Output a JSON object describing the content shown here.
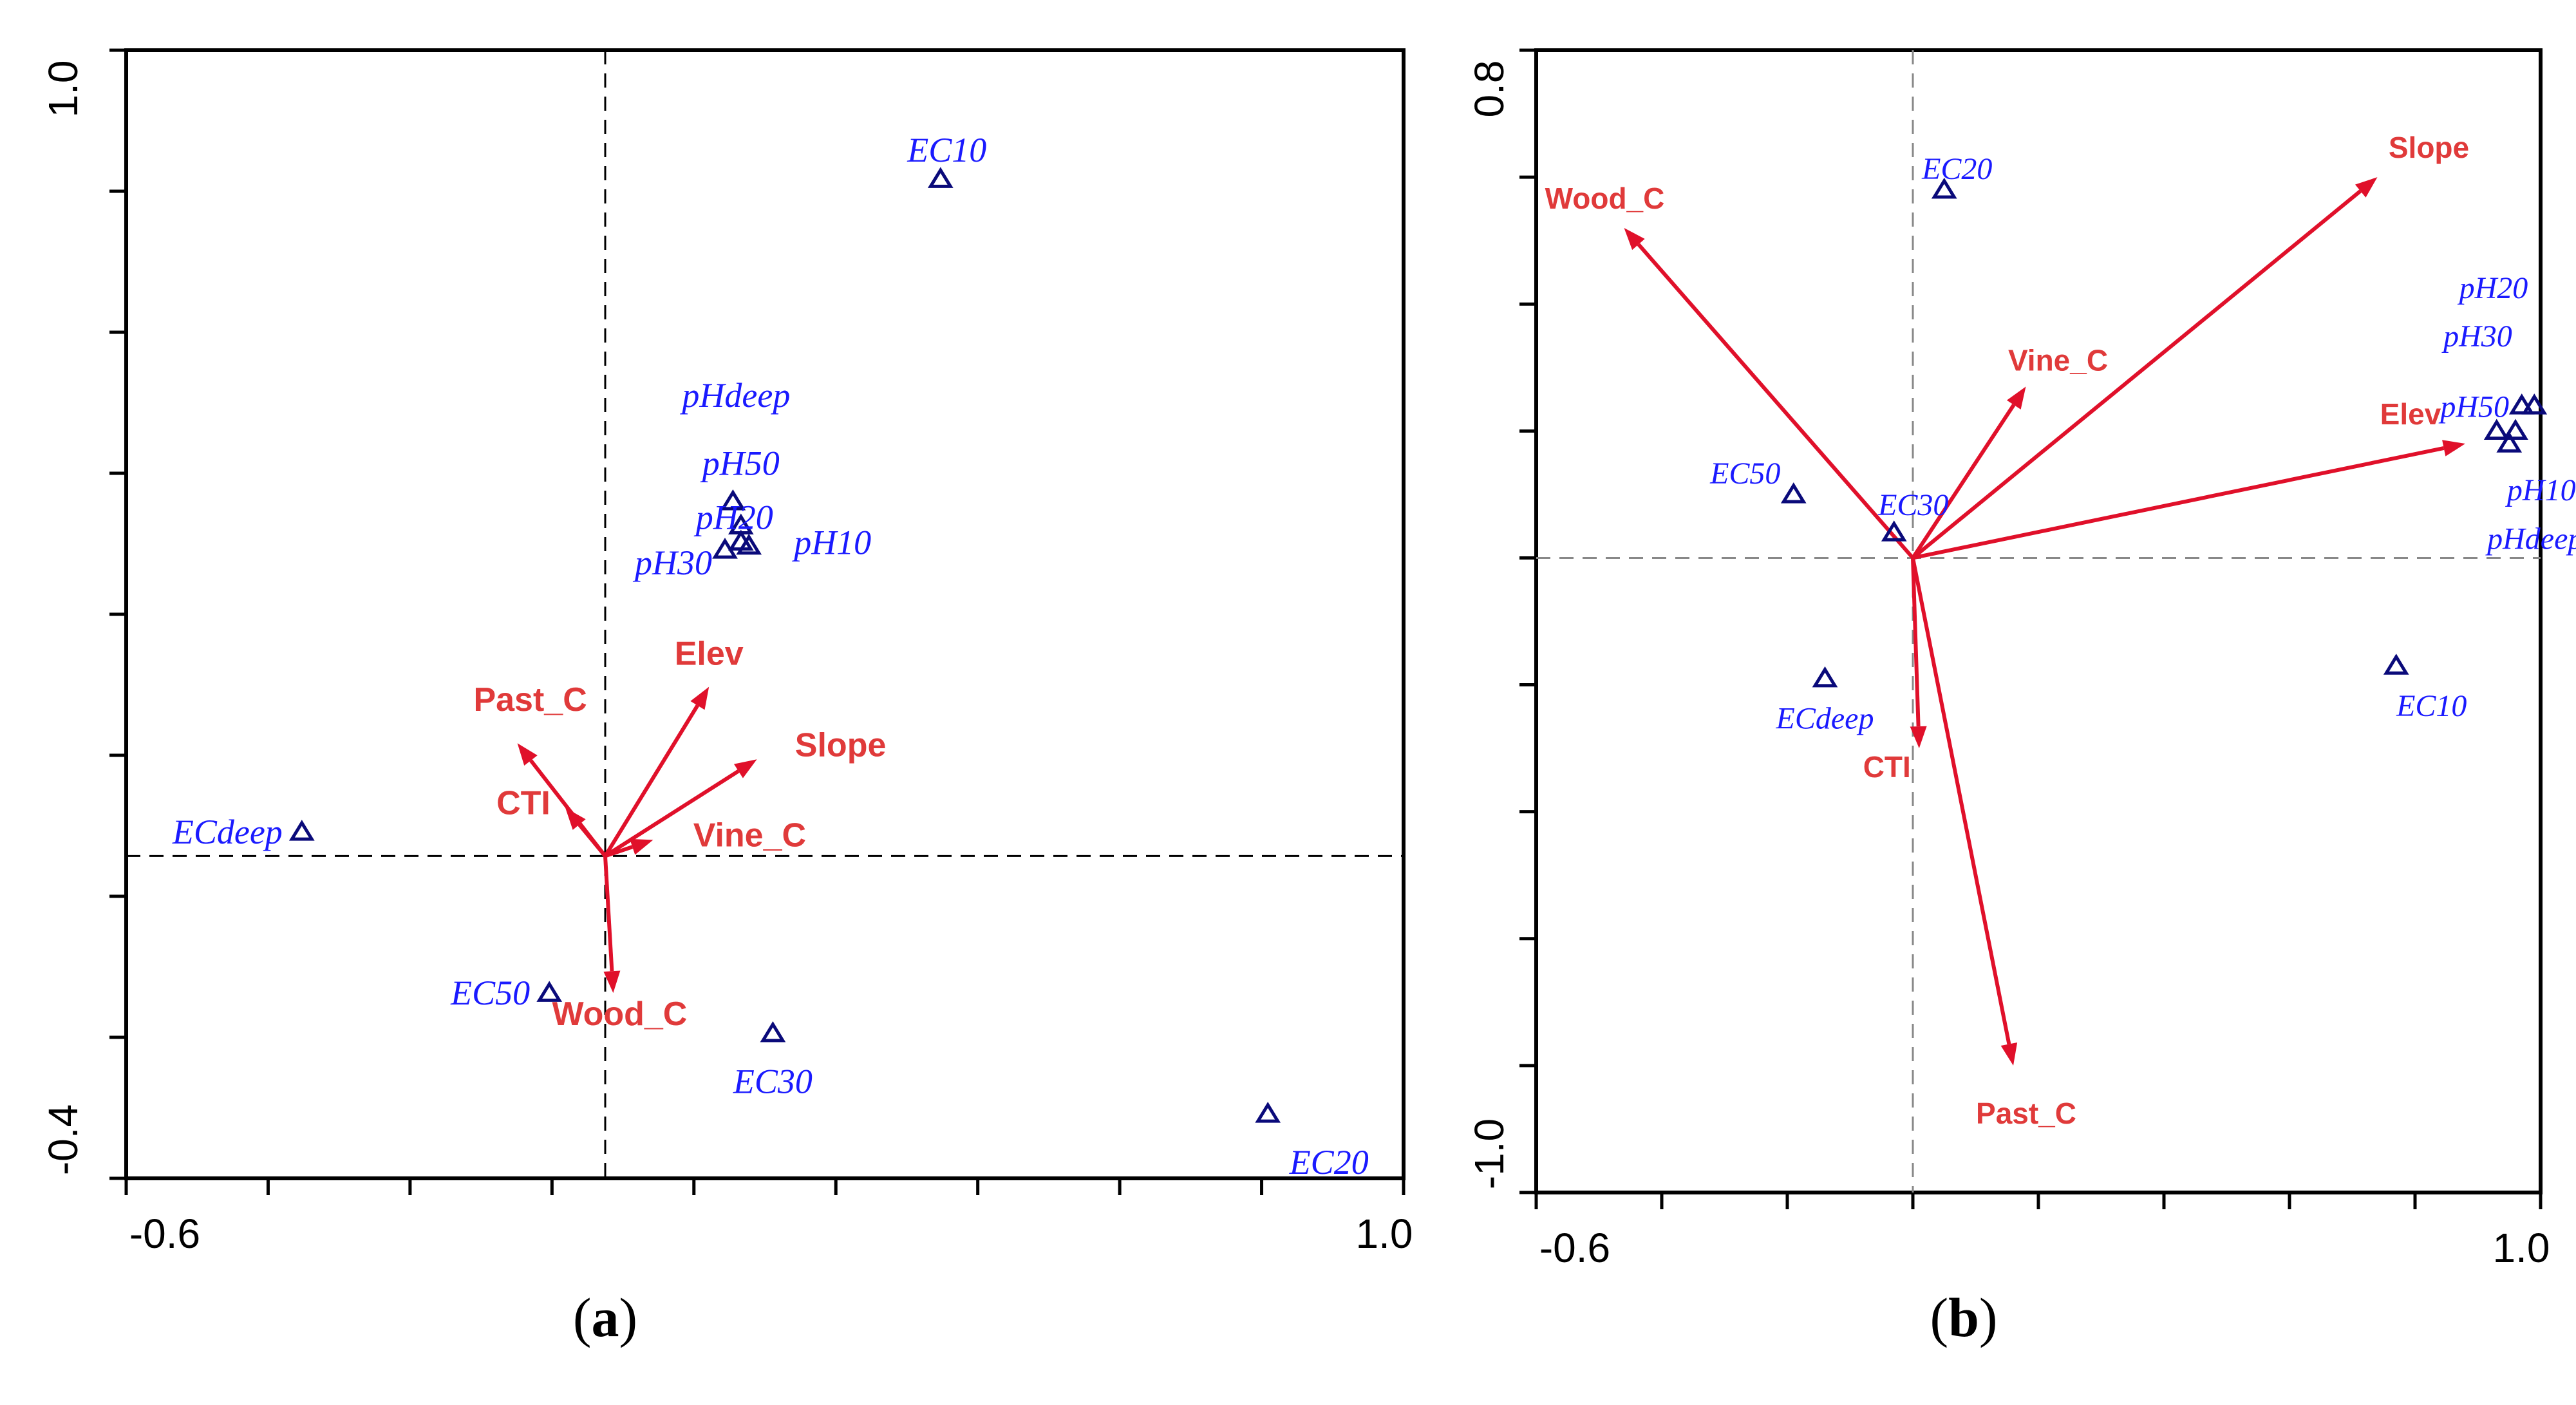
{
  "chart_data": [
    {
      "type": "scatter",
      "panel_label": "(a)",
      "xlim": [
        -0.6,
        1.0
      ],
      "ylim": [
        -0.4,
        1.0
      ],
      "x_tick_labels": [
        "-0.6",
        "1.0"
      ],
      "y_tick_labels": [
        "-0.4",
        "1.0"
      ],
      "grid": false,
      "zero_lines": true,
      "vectors": [
        {
          "name": "Elev",
          "x": 0.13,
          "y": 0.21
        },
        {
          "name": "Past_C",
          "x": -0.11,
          "y": 0.14
        },
        {
          "name": "Slope",
          "x": 0.19,
          "y": 0.12
        },
        {
          "name": "CTI",
          "x": -0.05,
          "y": 0.06
        },
        {
          "name": "Vine_C",
          "x": 0.06,
          "y": 0.02
        },
        {
          "name": "Wood_C",
          "x": 0.01,
          "y": -0.17
        }
      ],
      "points": [
        {
          "name": "EC10",
          "x": 0.42,
          "y": 0.84
        },
        {
          "name": "pHdeep",
          "x": 0.16,
          "y": 0.44
        },
        {
          "name": "pH50",
          "x": 0.17,
          "y": 0.41
        },
        {
          "name": "pH20",
          "x": 0.17,
          "y": 0.39
        },
        {
          "name": "pH30",
          "x": 0.15,
          "y": 0.38
        },
        {
          "name": "pH10",
          "x": 0.18,
          "y": 0.385
        },
        {
          "name": "ECdeep",
          "x": -0.38,
          "y": 0.03
        },
        {
          "name": "EC50",
          "x": -0.07,
          "y": -0.17
        },
        {
          "name": "EC30",
          "x": 0.21,
          "y": -0.22
        },
        {
          "name": "EC20",
          "x": 0.83,
          "y": -0.32
        }
      ]
    },
    {
      "type": "scatter",
      "panel_label": "(b)",
      "xlim": [
        -0.6,
        1.0
      ],
      "ylim": [
        -1.0,
        0.8
      ],
      "x_tick_labels": [
        "-0.6",
        "1.0"
      ],
      "y_tick_labels": [
        "-1.0",
        "0.8"
      ],
      "grid": false,
      "zero_lines": true,
      "vectors": [
        {
          "name": "Slope",
          "x": 0.74,
          "y": 0.6
        },
        {
          "name": "Wood_C",
          "x": -0.46,
          "y": 0.52
        },
        {
          "name": "Elev",
          "x": 0.88,
          "y": 0.18
        },
        {
          "name": "Vine_C",
          "x": 0.18,
          "y": 0.27
        },
        {
          "name": "CTI",
          "x": 0.01,
          "y": -0.3
        },
        {
          "name": "Past_C",
          "x": 0.16,
          "y": -0.8
        }
      ],
      "points": [
        {
          "name": "EC20",
          "x": 0.05,
          "y": 0.58
        },
        {
          "name": "pH20",
          "x": 0.99,
          "y": 0.24
        },
        {
          "name": "pH30",
          "x": 0.97,
          "y": 0.24
        },
        {
          "name": "pH50",
          "x": 0.96,
          "y": 0.2
        },
        {
          "name": "pH10",
          "x": 0.95,
          "y": 0.18
        },
        {
          "name": "pHdeep",
          "x": 0.93,
          "y": 0.2
        },
        {
          "name": "EC50",
          "x": -0.19,
          "y": 0.1
        },
        {
          "name": "EC30",
          "x": -0.03,
          "y": 0.04
        },
        {
          "name": "ECdeep",
          "x": -0.14,
          "y": -0.19
        },
        {
          "name": "EC10",
          "x": 0.77,
          "y": -0.17
        }
      ]
    }
  ]
}
